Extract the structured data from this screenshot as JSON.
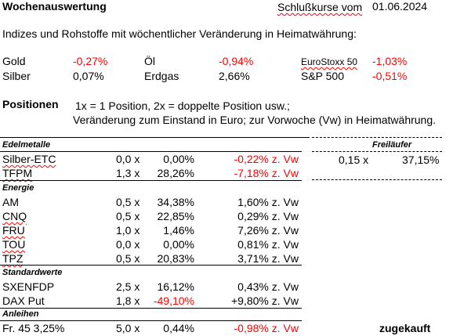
{
  "header": {
    "title": "Wochenauswertung",
    "schluss_label": "Schlußkurse vom",
    "date": "01.06.2024"
  },
  "indices_intro": "Indizes und Rohstoffe mit wöchentlicher Veränderung in Heimatwährung:",
  "indices": [
    {
      "name": "Gold",
      "value": "-0,27%",
      "negative": true
    },
    {
      "name": "Silber",
      "value": "0,07%",
      "negative": false
    },
    {
      "name": "Öl",
      "value": "-0,94%",
      "negative": true
    },
    {
      "name": "Erdgas",
      "value": "2,66%",
      "negative": false
    },
    {
      "name": "EuroStoxx 50",
      "value": "-1,03%",
      "negative": true
    },
    {
      "name": "S&P 500",
      "value": "-0,51%",
      "negative": true
    }
  ],
  "positions": {
    "title": "Positionen",
    "note1": "1x = 1 Position, 2x = doppelte Position usw.;",
    "note2": "Veränderung zum Einstand in Euro; zur Vorwoche (Vw) in Heimatwährung."
  },
  "freilaeufer": {
    "title": "Freiläufer",
    "factor": "0,15 x",
    "change": "37,15%"
  },
  "sections": [
    {
      "title": "Edelmetalle",
      "rows": [
        {
          "name": "Silber-ETC",
          "factor": "0,0 x",
          "total": "0,00%",
          "week": "-0,22% z. Vw",
          "neg_total": false,
          "neg_week": true
        },
        {
          "name": "TFPM",
          "factor": "1,3 x",
          "total": "28,26%",
          "week": "-7,18% z. Vw",
          "neg_total": false,
          "neg_week": true
        }
      ]
    },
    {
      "title": "Energie",
      "rows": [
        {
          "name": "AM",
          "factor": "0,5 x",
          "total": "34,38%",
          "week": "1,60% z. Vw",
          "neg_total": false,
          "neg_week": false
        },
        {
          "name": "CNQ",
          "factor": "0,5 x",
          "total": "22,85%",
          "week": "0,29% z. Vw",
          "neg_total": false,
          "neg_week": false
        },
        {
          "name": "FRU",
          "factor": "1,0 x",
          "total": "1,46%",
          "week": "7,26% z. Vw",
          "neg_total": false,
          "neg_week": false
        },
        {
          "name": "TOU",
          "factor": "0,0 x",
          "total": "0,00%",
          "week": "0,81% z. Vw",
          "neg_total": false,
          "neg_week": false
        },
        {
          "name": "TPZ",
          "factor": "0,5 x",
          "total": "20,83%",
          "week": "3,71% z. Vw",
          "neg_total": false,
          "neg_week": false
        }
      ]
    },
    {
      "title": "Standardwerte",
      "rows": [
        {
          "name": "SXENFDP",
          "factor": "2,5 x",
          "total": "16,12%",
          "week": "0,43% z. Vw",
          "neg_total": false,
          "neg_week": false
        },
        {
          "name": "DAX Put",
          "factor": "1,8 x",
          "total": "-49,10%",
          "week": "+9,80% z. Vw",
          "neg_total": true,
          "neg_week": false
        }
      ]
    },
    {
      "title": "Anleihen",
      "rows": [
        {
          "name": "Fr. 45 3,25%",
          "factor": "5,0 x",
          "total": "0,44%",
          "week": "-0,98% z. Vw",
          "neg_total": false,
          "neg_week": true
        }
      ]
    }
  ],
  "anleihen_note": "zugekauft",
  "colors": {
    "negative": "#ff0000",
    "text": "#000000",
    "background": "#ffffff"
  }
}
